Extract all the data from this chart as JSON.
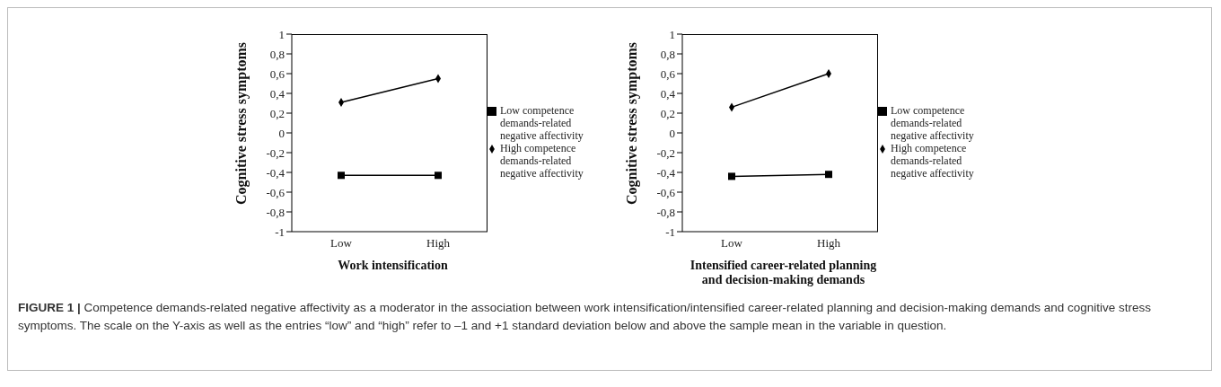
{
  "chart_data": [
    {
      "type": "line",
      "categories": [
        "Low",
        "High"
      ],
      "xlabel": "Work intensification",
      "ylabel": "Cognitive stress symptoms",
      "ylim": [
        -1,
        1
      ],
      "yticks": [
        {
          "value": -1,
          "label": "-1"
        },
        {
          "value": -0.8,
          "label": "-0,8"
        },
        {
          "value": -0.6,
          "label": "-0,6"
        },
        {
          "value": -0.4,
          "label": "-0,4"
        },
        {
          "value": -0.2,
          "label": "-0,2"
        },
        {
          "value": 0,
          "label": "0"
        },
        {
          "value": 0.2,
          "label": "0,2"
        },
        {
          "value": 0.4,
          "label": "0,4"
        },
        {
          "value": 0.6,
          "label": "0,6"
        },
        {
          "value": 0.8,
          "label": "0,8"
        },
        {
          "value": 1,
          "label": "1"
        }
      ],
      "grid": false,
      "legend": "right",
      "series": [
        {
          "name": "Low competence demands-related negative affectivity",
          "color": "#000000",
          "marker": "square",
          "values": [
            -0.43,
            -0.43
          ]
        },
        {
          "name": "High competence demands-related negative affectivity",
          "color": "#000000",
          "marker": "diamond",
          "values": [
            0.31,
            0.55
          ]
        }
      ],
      "annotations": [
        "FIGURE 1 | Competence demands-related negative affectivity as a moderator in the association between work intensification/intensified career-related planning and decision-making demands and cognitive stress symptoms. The scale on the Y-axis as well as the entries “low” and “high” refer to –1 and +1 standard deviation below and above the sample mean in the variable in question."
      ]
    },
    {
      "type": "line",
      "categories": [
        "Low",
        "High"
      ],
      "xlabel": "Intensified career-related planning and decision-making demands",
      "ylabel": "Cognitive stress symptoms",
      "ylim": [
        -1,
        1
      ],
      "yticks": [
        {
          "value": -1,
          "label": "-1"
        },
        {
          "value": -0.8,
          "label": "-0,8"
        },
        {
          "value": -0.6,
          "label": "-0,6"
        },
        {
          "value": -0.4,
          "label": "-0,4"
        },
        {
          "value": -0.2,
          "label": "-0,2"
        },
        {
          "value": 0,
          "label": "0"
        },
        {
          "value": 0.2,
          "label": "0,2"
        },
        {
          "value": 0.4,
          "label": "0,4"
        },
        {
          "value": 0.6,
          "label": "0,6"
        },
        {
          "value": 0.8,
          "label": "0,8"
        },
        {
          "value": 1,
          "label": "1"
        }
      ],
      "grid": false,
      "legend": "right",
      "series": [
        {
          "name": "Low competence demands-related negative affectivity",
          "color": "#000000",
          "marker": "square",
          "values": [
            -0.44,
            -0.42
          ]
        },
        {
          "name": "High competence demands-related negative affectivity",
          "color": "#000000",
          "marker": "diamond",
          "values": [
            0.26,
            0.6
          ]
        }
      ]
    }
  ]
}
